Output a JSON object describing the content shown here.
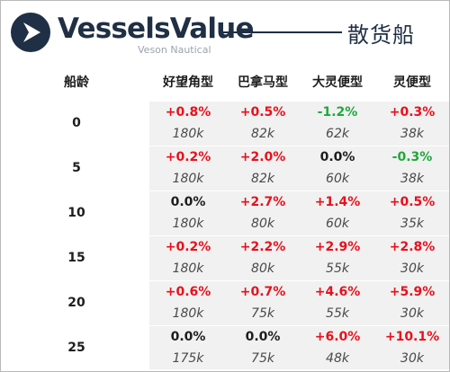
{
  "header": {
    "brand": "VesselsValue",
    "brand_sub": "Veson Nautical",
    "title": "散货船"
  },
  "colors": {
    "brand_navy": "#1f2f45",
    "positive": "#e8101c",
    "negative": "#1fa83a",
    "neutral": "#1d1d1d",
    "cell_bg": "#f1f1f1"
  },
  "icons": {
    "logo": "vesselsvalue-logo-icon"
  },
  "chart_data": {
    "type": "table",
    "row_header": "船龄",
    "columns": [
      "好望角型",
      "巴拿马型",
      "大灵便型",
      "灵便型"
    ],
    "rows": [
      {
        "age": "0",
        "change": [
          "+0.8%",
          "+0.5%",
          "-1.2%",
          "+0.3%"
        ],
        "value": [
          "180k",
          "82k",
          "62k",
          "38k"
        ]
      },
      {
        "age": "5",
        "change": [
          "+0.2%",
          "+2.0%",
          "0.0%",
          "-0.3%"
        ],
        "value": [
          "180k",
          "82k",
          "60k",
          "38k"
        ]
      },
      {
        "age": "10",
        "change": [
          "0.0%",
          "+2.7%",
          "+1.4%",
          "+0.5%"
        ],
        "value": [
          "180k",
          "80k",
          "60k",
          "35k"
        ]
      },
      {
        "age": "15",
        "change": [
          "+0.2%",
          "+2.2%",
          "+2.9%",
          "+2.8%"
        ],
        "value": [
          "180k",
          "80k",
          "55k",
          "30k"
        ]
      },
      {
        "age": "20",
        "change": [
          "+0.6%",
          "+0.7%",
          "+4.6%",
          "+5.9%"
        ],
        "value": [
          "180k",
          "75k",
          "55k",
          "30k"
        ]
      },
      {
        "age": "25",
        "change": [
          "0.0%",
          "0.0%",
          "+6.0%",
          "+10.1%"
        ],
        "value": [
          "175k",
          "75k",
          "48k",
          "30k"
        ]
      }
    ]
  }
}
